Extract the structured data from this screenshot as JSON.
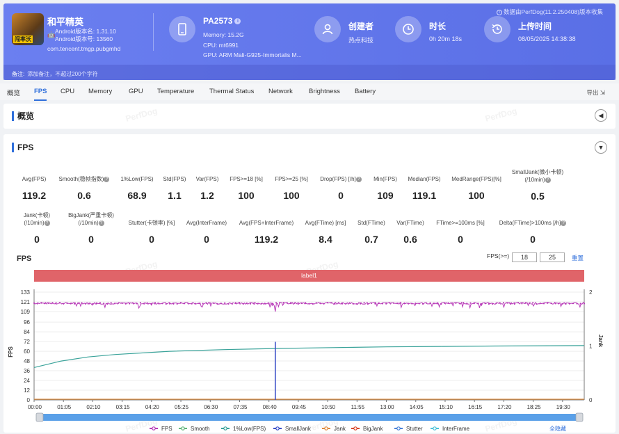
{
  "header": {
    "app_name": "和平精英",
    "app_icon_tag": "闯率沃",
    "android_version": "Android版本名: 1.31.10",
    "android_code": "Android版本号: 13560",
    "package": "com.tencent.tmgp.pubgmhd",
    "device_name": "PA2573",
    "memory": "Memory: 15.2G",
    "cpu": "CPU: mt6991",
    "gpu": "GPU: ARM Mali-G925-Immortalis M...",
    "creator_title": "创建者",
    "creator_value": "热点科技",
    "duration_title": "时长",
    "duration_value": "0h 20m 18s",
    "upload_title": "上传时间",
    "upload_value": "08/05/2025 14:38:38",
    "data_from": "数据由PerfDog(11.2.250408)版本收集",
    "note_label": "备注:",
    "note_placeholder": "添加备注，不超过200个字符"
  },
  "tabs": [
    "概览",
    "FPS",
    "CPU",
    "Memory",
    "GPU",
    "Temperature",
    "Thermal Status",
    "Network",
    "Brightness",
    "Battery"
  ],
  "export_label": "导出",
  "overview_title": "概览",
  "fps_section_title": "FPS",
  "stats_row1": [
    {
      "label": "Avg(FPS)",
      "value": "119.2"
    },
    {
      "label": "Smooth(稳帧指数)",
      "value": "0.6"
    },
    {
      "label": "1%Low(FPS)",
      "value": "68.9"
    },
    {
      "label": "Std(FPS)",
      "value": "1.1"
    },
    {
      "label": "Var(FPS)",
      "value": "1.2"
    },
    {
      "label": "FPS>=18 [%]",
      "value": "100"
    },
    {
      "label": "FPS>=25 [%]",
      "value": "100"
    },
    {
      "label": "Drop(FPS) [/h]",
      "value": "0"
    },
    {
      "label": "Min(FPS)",
      "value": "109"
    },
    {
      "label": "Median(FPS)",
      "value": "119.1"
    },
    {
      "label": "MedRange(FPS)[%]",
      "value": "100"
    },
    {
      "label": "SmallJank(微小卡顿)",
      "label2": "(/10min)",
      "value": "0.5"
    }
  ],
  "stats_row2": [
    {
      "label": "Jank(卡顿)",
      "label2": "(/10min)",
      "value": "0"
    },
    {
      "label": "BigJank(严重卡顿)",
      "label2": "(/10min)",
      "value": "0"
    },
    {
      "label": "Stutter(卡顿率) [%]",
      "value": "0"
    },
    {
      "label": "Avg(InterFrame)",
      "value": "0"
    },
    {
      "label": "Avg(FPS+InterFrame)",
      "value": "119.2"
    },
    {
      "label": "Avg(FTime) [ms]",
      "value": "8.4"
    },
    {
      "label": "Std(FTime)",
      "value": "0.7"
    },
    {
      "label": "Var(FTime)",
      "value": "0.6"
    },
    {
      "label": "FTime>=100ms [%]",
      "value": "0"
    },
    {
      "label": "Delta(FTime)>100ms [/h]",
      "value": "0"
    }
  ],
  "chart_controls": {
    "title": "FPS",
    "fps_ge_label": "FPS(>=)",
    "threshold1": "18",
    "threshold2": "25",
    "reset_label": "重置",
    "label_bar": "label1",
    "hide_all": "全隐藏"
  },
  "chart_data": {
    "type": "line",
    "ylabel": "FPS",
    "y2label": "Jank",
    "ylim": [
      0,
      133
    ],
    "y2lim": [
      0,
      2
    ],
    "yticks": [
      "0",
      "12",
      "24",
      "36",
      "48",
      "60",
      "72",
      "84",
      "96",
      "109",
      "121",
      "133"
    ],
    "y2ticks": [
      "0",
      "1",
      "2"
    ],
    "xticks": [
      "00:00",
      "01:05",
      "02:10",
      "03:15",
      "04:20",
      "05:25",
      "06:30",
      "07:35",
      "08:40",
      "09:45",
      "10:50",
      "11:55",
      "13:00",
      "14:05",
      "15:10",
      "16:15",
      "17:20",
      "18:25",
      "19:30"
    ],
    "x_seconds_end": 1218,
    "series": [
      {
        "name": "FPS",
        "color": "#b83ab8",
        "approx_value": 119.2,
        "min": 109
      },
      {
        "name": "Smooth",
        "color": "#5fb57a"
      },
      {
        "name": "1%Low(FPS)",
        "color": "#3aa39a",
        "points": [
          [
            0,
            40
          ],
          [
            60,
            48
          ],
          [
            120,
            53
          ],
          [
            180,
            56
          ],
          [
            300,
            60
          ],
          [
            420,
            62
          ],
          [
            540,
            63.5
          ],
          [
            660,
            64.5
          ],
          [
            780,
            65.5
          ],
          [
            900,
            66
          ],
          [
            1020,
            66.5
          ],
          [
            1218,
            67
          ]
        ]
      },
      {
        "name": "SmallJank",
        "color": "#3a4fc8",
        "spike_at": "08:54",
        "spike_value": 1
      },
      {
        "name": "Jank",
        "color": "#e08a3c"
      },
      {
        "name": "BigJank",
        "color": "#d9472b"
      },
      {
        "name": "Stutter",
        "color": "#4a82d8"
      },
      {
        "name": "InterFrame",
        "color": "#4cc2d8"
      }
    ]
  }
}
